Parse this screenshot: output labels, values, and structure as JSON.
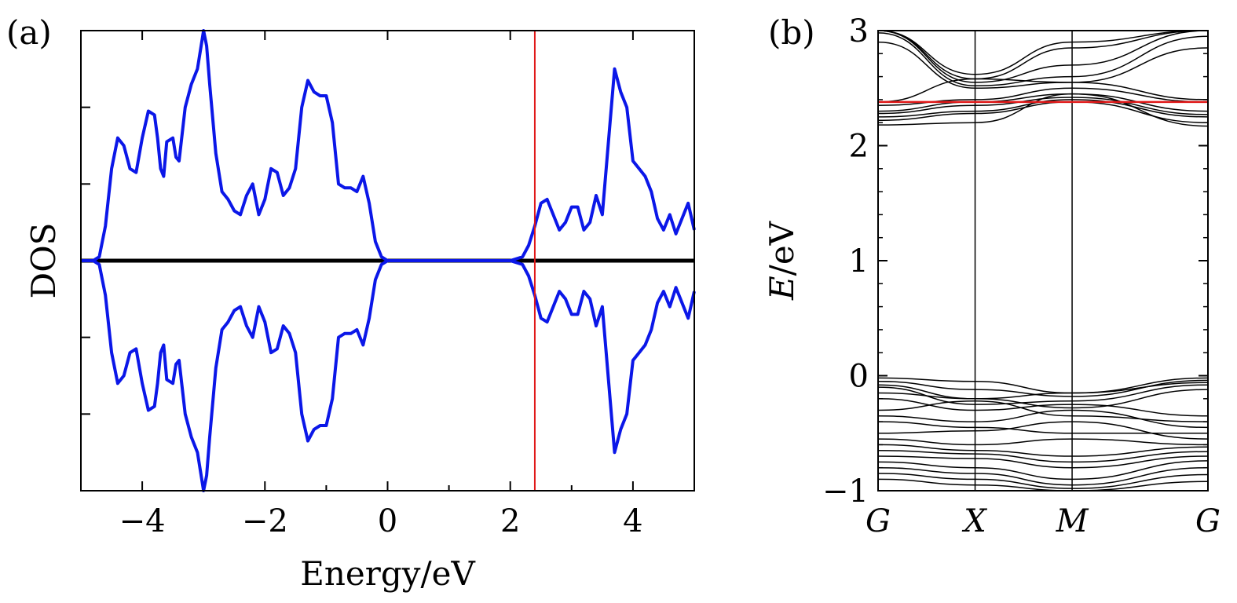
{
  "chart_data": [
    {
      "type": "line",
      "panel_label": "(a)",
      "xlabel": "Energy/eV",
      "ylabel": "DOS",
      "xlim": [
        -5,
        5
      ],
      "ylim": [
        -3,
        3
      ],
      "x_ticks_major": [
        -4,
        -2,
        0,
        2,
        4
      ],
      "x_tick_labels": [
        "−4",
        "−2",
        "0",
        "2",
        "4"
      ],
      "x_ticks_minor": [
        -5,
        -3,
        -1,
        1,
        3,
        5
      ],
      "y_ticks": [
        -2,
        -1,
        0,
        1,
        2
      ],
      "y_tick_labels_shown": false,
      "grid": false,
      "legend": "none",
      "colors": {
        "dos": "#0b17e8",
        "zero_line": "#000000",
        "marker_line": "#e01818"
      },
      "zero_line_y": 0,
      "vertical_marker_x": 2.4,
      "series": [
        {
          "role": "spin-up",
          "x": [
            -5,
            -4.8,
            -4.7,
            -4.6,
            -4.5,
            -4.4,
            -4.3,
            -4.2,
            -4.1,
            -4.0,
            -3.9,
            -3.8,
            -3.75,
            -3.7,
            -3.65,
            -3.6,
            -3.5,
            -3.45,
            -3.4,
            -3.3,
            -3.2,
            -3.1,
            -3.0,
            -2.95,
            -2.9,
            -2.8,
            -2.7,
            -2.6,
            -2.5,
            -2.4,
            -2.3,
            -2.2,
            -2.1,
            -2.0,
            -1.9,
            -1.8,
            -1.7,
            -1.6,
            -1.5,
            -1.4,
            -1.3,
            -1.2,
            -1.1,
            -1.0,
            -0.9,
            -0.8,
            -0.7,
            -0.6,
            -0.5,
            -0.4,
            -0.3,
            -0.2,
            -0.1,
            0,
            0.5,
            1.0,
            1.5,
            2.0,
            2.2,
            2.3,
            2.4,
            2.5,
            2.6,
            2.7,
            2.8,
            2.9,
            3.0,
            3.1,
            3.2,
            3.3,
            3.4,
            3.5,
            3.6,
            3.7,
            3.8,
            3.9,
            4.0,
            4.1,
            4.2,
            4.3,
            4.4,
            4.5,
            4.6,
            4.7,
            4.8,
            4.9,
            5.0
          ],
          "y": [
            0,
            0,
            0.05,
            0.45,
            1.2,
            1.6,
            1.5,
            1.2,
            1.15,
            1.6,
            1.95,
            1.9,
            1.6,
            1.2,
            1.1,
            1.55,
            1.6,
            1.35,
            1.3,
            2.0,
            2.3,
            2.5,
            3.0,
            2.8,
            2.3,
            1.4,
            0.9,
            0.8,
            0.65,
            0.6,
            0.85,
            1.0,
            0.6,
            0.8,
            1.2,
            1.15,
            0.85,
            0.95,
            1.2,
            2.0,
            2.35,
            2.2,
            2.15,
            2.15,
            1.8,
            1.0,
            0.95,
            0.95,
            0.9,
            1.1,
            0.75,
            0.25,
            0.05,
            0,
            0,
            0,
            0,
            0,
            0.05,
            0.2,
            0.45,
            0.75,
            0.8,
            0.6,
            0.4,
            0.5,
            0.7,
            0.7,
            0.4,
            0.5,
            0.85,
            0.6,
            1.55,
            2.5,
            2.2,
            2.0,
            1.3,
            1.2,
            1.1,
            0.9,
            0.55,
            0.4,
            0.6,
            0.35,
            0.55,
            0.75,
            0.4
          ]
        },
        {
          "role": "spin-down",
          "x": [
            -5,
            -4.8,
            -4.7,
            -4.6,
            -4.5,
            -4.4,
            -4.3,
            -4.2,
            -4.1,
            -4.0,
            -3.9,
            -3.8,
            -3.75,
            -3.7,
            -3.65,
            -3.6,
            -3.5,
            -3.45,
            -3.4,
            -3.3,
            -3.2,
            -3.1,
            -3.0,
            -2.95,
            -2.9,
            -2.8,
            -2.7,
            -2.6,
            -2.5,
            -2.4,
            -2.3,
            -2.2,
            -2.1,
            -2.0,
            -1.9,
            -1.8,
            -1.7,
            -1.6,
            -1.5,
            -1.4,
            -1.3,
            -1.2,
            -1.1,
            -1.0,
            -0.9,
            -0.8,
            -0.7,
            -0.6,
            -0.5,
            -0.4,
            -0.3,
            -0.2,
            -0.1,
            0,
            0.5,
            1.0,
            1.5,
            2.0,
            2.2,
            2.3,
            2.4,
            2.5,
            2.6,
            2.7,
            2.8,
            2.9,
            3.0,
            3.1,
            3.2,
            3.3,
            3.4,
            3.5,
            3.6,
            3.7,
            3.8,
            3.9,
            4.0,
            4.1,
            4.2,
            4.3,
            4.4,
            4.5,
            4.6,
            4.7,
            4.8,
            4.9,
            5.0
          ],
          "y": [
            0,
            0,
            -0.05,
            -0.45,
            -1.2,
            -1.6,
            -1.5,
            -1.2,
            -1.15,
            -1.6,
            -1.95,
            -1.9,
            -1.6,
            -1.2,
            -1.1,
            -1.55,
            -1.6,
            -1.35,
            -1.3,
            -2.0,
            -2.3,
            -2.5,
            -3.0,
            -2.8,
            -2.3,
            -1.4,
            -0.9,
            -0.8,
            -0.65,
            -0.6,
            -0.85,
            -1.0,
            -0.6,
            -0.8,
            -1.2,
            -1.15,
            -0.85,
            -0.95,
            -1.2,
            -2.0,
            -2.35,
            -2.2,
            -2.15,
            -2.15,
            -1.8,
            -1.0,
            -0.95,
            -0.95,
            -0.9,
            -1.1,
            -0.75,
            -0.25,
            -0.05,
            0,
            0,
            0,
            0,
            0,
            -0.05,
            -0.2,
            -0.45,
            -0.75,
            -0.8,
            -0.6,
            -0.4,
            -0.5,
            -0.7,
            -0.7,
            -0.4,
            -0.5,
            -0.85,
            -0.6,
            -1.55,
            -2.5,
            -2.2,
            -2.0,
            -1.3,
            -1.2,
            -1.1,
            -0.9,
            -0.55,
            -0.4,
            -0.6,
            -0.35,
            -0.55,
            -0.75,
            -0.4
          ]
        }
      ]
    },
    {
      "type": "line",
      "panel_label": "(b)",
      "ylabel_var": "E",
      "ylabel_unit": "/eV",
      "x_categories": [
        "G",
        "X",
        "M",
        "G"
      ],
      "x_positions": [
        0,
        1,
        2,
        3.4
      ],
      "ylim": [
        -1,
        3
      ],
      "y_ticks": [
        -1,
        0,
        1,
        2,
        3
      ],
      "y_tick_labels": [
        "−1",
        "0",
        "1",
        "2",
        "3"
      ],
      "grid": false,
      "legend": "none",
      "colors": {
        "bands": "#000000",
        "fermi_line": "#e01818",
        "kpoint_lines": "#000000"
      },
      "horizontal_marker_y": 2.38,
      "bands": [
        {
          "x": [
            0,
            1,
            2,
            3.4
          ],
          "y": [
            3.0,
            2.62,
            2.9,
            3.0
          ]
        },
        {
          "x": [
            0,
            1,
            2,
            3.4
          ],
          "y": [
            3.0,
            2.58,
            2.85,
            3.0
          ]
        },
        {
          "x": [
            0,
            1,
            2,
            3.4
          ],
          "y": [
            3.0,
            2.55,
            2.7,
            3.0
          ]
        },
        {
          "x": [
            0,
            1,
            2,
            3.4
          ],
          "y": [
            2.98,
            2.52,
            2.6,
            2.95
          ]
        },
        {
          "x": [
            0,
            1,
            2,
            3.4
          ],
          "y": [
            2.9,
            2.5,
            2.55,
            2.85
          ]
        },
        {
          "x": [
            0,
            1,
            2,
            3.4
          ],
          "y": [
            2.38,
            2.58,
            2.55,
            2.4
          ]
        },
        {
          "x": [
            0,
            1,
            2,
            3.4
          ],
          "y": [
            2.35,
            2.4,
            2.5,
            2.38
          ]
        },
        {
          "x": [
            0,
            1,
            2,
            3.4
          ],
          "y": [
            2.3,
            2.38,
            2.45,
            2.3
          ]
        },
        {
          "x": [
            0,
            1,
            2,
            3.4
          ],
          "y": [
            2.28,
            2.35,
            2.42,
            2.27
          ]
        },
        {
          "x": [
            0,
            1,
            2,
            3.4
          ],
          "y": [
            2.25,
            2.3,
            2.4,
            2.25
          ]
        },
        {
          "x": [
            0,
            1,
            2,
            3.4
          ],
          "y": [
            2.22,
            2.28,
            2.38,
            2.2
          ]
        },
        {
          "x": [
            0,
            1,
            2,
            3.4
          ],
          "y": [
            2.18,
            2.2,
            2.45,
            2.17
          ]
        },
        {
          "x": [
            0,
            1,
            2,
            3.4
          ],
          "y": [
            -0.02,
            -0.05,
            -0.15,
            -0.02
          ]
        },
        {
          "x": [
            0,
            1,
            2,
            3.4
          ],
          "y": [
            -0.05,
            -0.12,
            -0.18,
            -0.04
          ]
        },
        {
          "x": [
            0,
            1,
            2,
            3.4
          ],
          "y": [
            -0.08,
            -0.2,
            -0.15,
            -0.06
          ]
        },
        {
          "x": [
            0,
            1,
            2,
            3.4
          ],
          "y": [
            -0.1,
            -0.25,
            -0.22,
            -0.08
          ]
        },
        {
          "x": [
            0,
            1,
            2,
            3.4
          ],
          "y": [
            -0.15,
            -0.2,
            -0.28,
            -0.12
          ]
        },
        {
          "x": [
            0,
            1,
            2,
            3.4
          ],
          "y": [
            -0.2,
            -0.3,
            -0.25,
            -0.35
          ]
        },
        {
          "x": [
            0,
            1,
            2,
            3.4
          ],
          "y": [
            -0.3,
            -0.22,
            -0.35,
            -0.4
          ]
        },
        {
          "x": [
            0,
            1,
            2,
            3.4
          ],
          "y": [
            -0.35,
            -0.4,
            -0.3,
            -0.45
          ]
        },
        {
          "x": [
            0,
            1,
            2,
            3.4
          ],
          "y": [
            -0.4,
            -0.45,
            -0.5,
            -0.5
          ]
        },
        {
          "x": [
            0,
            1,
            2,
            3.4
          ],
          "y": [
            -0.5,
            -0.48,
            -0.4,
            -0.55
          ]
        },
        {
          "x": [
            0,
            1,
            2,
            3.4
          ],
          "y": [
            -0.55,
            -0.6,
            -0.55,
            -0.6
          ]
        },
        {
          "x": [
            0,
            1,
            2,
            3.4
          ],
          "y": [
            -0.6,
            -0.65,
            -0.7,
            -0.62
          ]
        },
        {
          "x": [
            0,
            1,
            2,
            3.4
          ],
          "y": [
            -0.65,
            -0.68,
            -0.75,
            -0.66
          ]
        },
        {
          "x": [
            0,
            1,
            2,
            3.4
          ],
          "y": [
            -0.7,
            -0.72,
            -0.8,
            -0.7
          ]
        },
        {
          "x": [
            0,
            1,
            2,
            3.4
          ],
          "y": [
            -0.75,
            -0.8,
            -0.9,
            -0.74
          ]
        },
        {
          "x": [
            0,
            1,
            2,
            3.4
          ],
          "y": [
            -0.8,
            -0.85,
            -0.95,
            -0.8
          ]
        },
        {
          "x": [
            0,
            1,
            2,
            3.4
          ],
          "y": [
            -0.85,
            -0.9,
            -0.98,
            -0.86
          ]
        },
        {
          "x": [
            0,
            1,
            2,
            3.4
          ],
          "y": [
            -0.9,
            -0.95,
            -1.0,
            -0.92
          ]
        }
      ]
    }
  ]
}
